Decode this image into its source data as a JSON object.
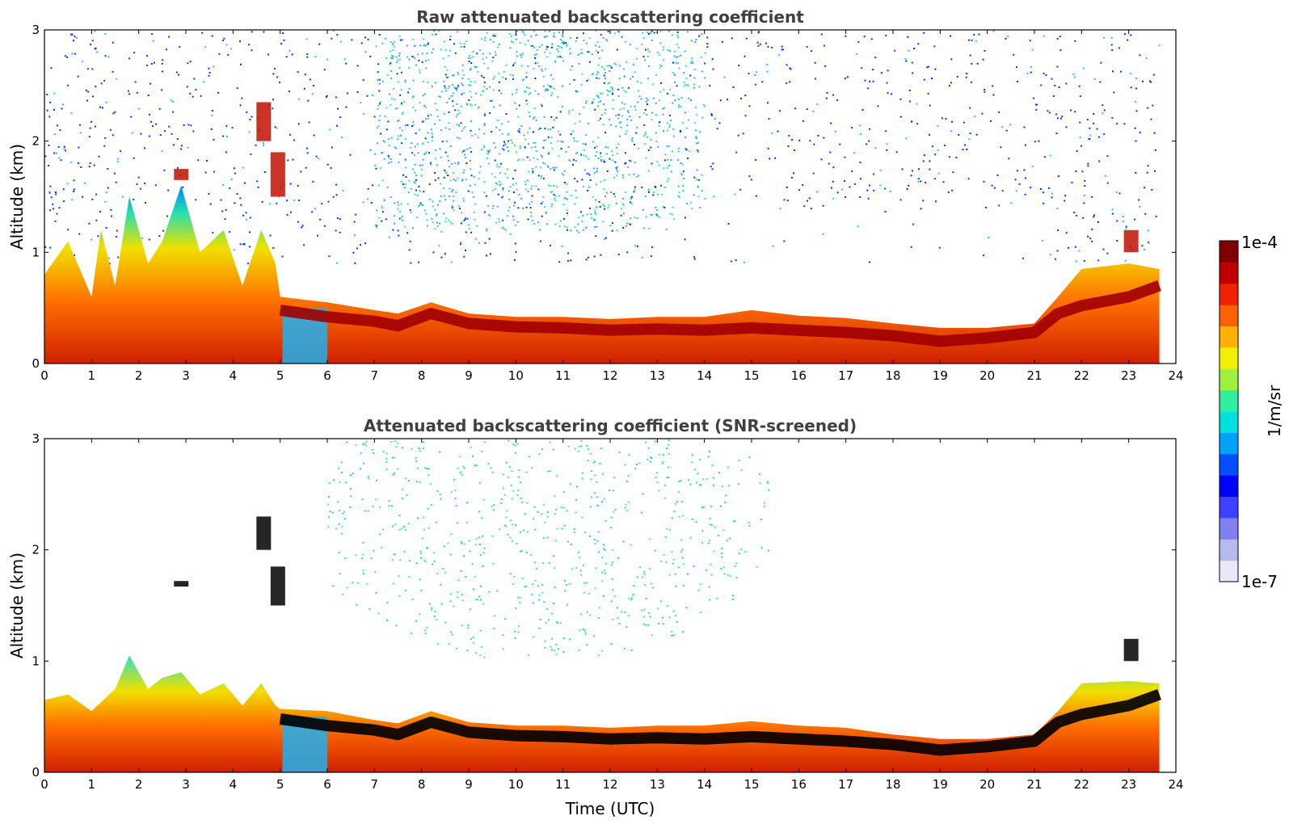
{
  "chart_data": [
    {
      "type": "heatmap",
      "title": "Raw attenuated backscattering coefficient",
      "xlabel": "",
      "ylabel": "Altitude (km)",
      "xlim": [
        0,
        24
      ],
      "ylim": [
        0,
        3
      ],
      "xticks": [
        "0",
        "1",
        "2",
        "3",
        "4",
        "5",
        "6",
        "7",
        "8",
        "9",
        "10",
        "11",
        "12",
        "13",
        "14",
        "15",
        "16",
        "17",
        "18",
        "19",
        "20",
        "21",
        "22",
        "23",
        "24"
      ],
      "yticks": [
        "0",
        "1",
        "2",
        "3"
      ],
      "data_end_hour": 23.65,
      "layer_top_km": [
        [
          0,
          0.8
        ],
        [
          0.5,
          1.1
        ],
        [
          1,
          0.6
        ],
        [
          1.2,
          1.2
        ],
        [
          1.5,
          0.7
        ],
        [
          1.8,
          1.5
        ],
        [
          2.2,
          0.9
        ],
        [
          2.5,
          1.1
        ],
        [
          2.9,
          1.6
        ],
        [
          3.3,
          1.0
        ],
        [
          3.8,
          1.2
        ],
        [
          4.2,
          0.7
        ],
        [
          4.6,
          1.2
        ],
        [
          4.9,
          0.9
        ],
        [
          5.0,
          0.6
        ],
        [
          6,
          0.55
        ],
        [
          7,
          0.48
        ],
        [
          7.5,
          0.45
        ],
        [
          8.2,
          0.55
        ],
        [
          9,
          0.45
        ],
        [
          10,
          0.42
        ],
        [
          11,
          0.42
        ],
        [
          12,
          0.4
        ],
        [
          13,
          0.42
        ],
        [
          14,
          0.42
        ],
        [
          15,
          0.48
        ],
        [
          16,
          0.43
        ],
        [
          17,
          0.41
        ],
        [
          18,
          0.36
        ],
        [
          19,
          0.32
        ],
        [
          20,
          0.32
        ],
        [
          21,
          0.36
        ],
        [
          21.5,
          0.6
        ],
        [
          22,
          0.85
        ],
        [
          23,
          0.9
        ],
        [
          23.65,
          0.85
        ]
      ],
      "cloud_layer_km": [
        [
          5.0,
          0.48
        ],
        [
          6,
          0.42
        ],
        [
          7,
          0.38
        ],
        [
          7.5,
          0.34
        ],
        [
          8.2,
          0.45
        ],
        [
          9,
          0.36
        ],
        [
          10,
          0.33
        ],
        [
          11,
          0.32
        ],
        [
          12,
          0.3
        ],
        [
          13,
          0.31
        ],
        [
          14,
          0.3
        ],
        [
          15,
          0.32
        ],
        [
          16,
          0.3
        ],
        [
          17,
          0.28
        ],
        [
          18,
          0.25
        ],
        [
          19,
          0.2
        ],
        [
          20,
          0.23
        ],
        [
          21,
          0.28
        ],
        [
          21.5,
          0.45
        ],
        [
          22,
          0.52
        ],
        [
          23,
          0.6
        ],
        [
          23.65,
          0.7
        ]
      ],
      "elevated_clouds": [
        {
          "x": 4.6,
          "y0": 2.0,
          "y1": 2.35
        },
        {
          "x": 4.9,
          "y0": 1.5,
          "y1": 1.9
        },
        {
          "x": 2.85,
          "y0": 1.65,
          "y1": 1.75
        },
        {
          "x": 23.0,
          "y0": 1.0,
          "y1": 1.2
        }
      ],
      "noise": "scattered blue and cyan/green noise above boundary layer, denser between 7 and 13 UTC above 1.5 km"
    },
    {
      "type": "heatmap",
      "title": "Attenuated backscattering coefficient (SNR-screened)",
      "xlabel": "Time (UTC)",
      "ylabel": "Altitude (km)",
      "xlim": [
        0,
        24
      ],
      "ylim": [
        0,
        3
      ],
      "xticks": [
        "0",
        "1",
        "2",
        "3",
        "4",
        "5",
        "6",
        "7",
        "8",
        "9",
        "10",
        "11",
        "12",
        "13",
        "14",
        "15",
        "16",
        "17",
        "18",
        "19",
        "20",
        "21",
        "22",
        "23",
        "24"
      ],
      "yticks": [
        "0",
        "1",
        "2",
        "3"
      ],
      "data_end_hour": 23.65,
      "layer_top_km": [
        [
          0,
          0.65
        ],
        [
          0.5,
          0.7
        ],
        [
          1,
          0.55
        ],
        [
          1.5,
          0.75
        ],
        [
          1.8,
          1.05
        ],
        [
          2.2,
          0.75
        ],
        [
          2.5,
          0.85
        ],
        [
          2.9,
          0.9
        ],
        [
          3.3,
          0.7
        ],
        [
          3.8,
          0.8
        ],
        [
          4.2,
          0.6
        ],
        [
          4.6,
          0.8
        ],
        [
          4.9,
          0.6
        ],
        [
          5.0,
          0.57
        ],
        [
          6,
          0.55
        ],
        [
          7,
          0.47
        ],
        [
          7.5,
          0.44
        ],
        [
          8.2,
          0.55
        ],
        [
          9,
          0.45
        ],
        [
          10,
          0.42
        ],
        [
          11,
          0.42
        ],
        [
          12,
          0.4
        ],
        [
          13,
          0.42
        ],
        [
          14,
          0.42
        ],
        [
          15,
          0.46
        ],
        [
          16,
          0.42
        ],
        [
          17,
          0.4
        ],
        [
          18,
          0.34
        ],
        [
          19,
          0.3
        ],
        [
          20,
          0.3
        ],
        [
          21,
          0.34
        ],
        [
          21.5,
          0.55
        ],
        [
          22,
          0.8
        ],
        [
          23,
          0.82
        ],
        [
          23.65,
          0.8
        ]
      ],
      "cloud_layer_km": [
        [
          5.0,
          0.48
        ],
        [
          6,
          0.42
        ],
        [
          7,
          0.38
        ],
        [
          7.5,
          0.34
        ],
        [
          8.2,
          0.45
        ],
        [
          9,
          0.36
        ],
        [
          10,
          0.33
        ],
        [
          11,
          0.32
        ],
        [
          12,
          0.3
        ],
        [
          13,
          0.31
        ],
        [
          14,
          0.3
        ],
        [
          15,
          0.32
        ],
        [
          16,
          0.3
        ],
        [
          17,
          0.28
        ],
        [
          18,
          0.25
        ],
        [
          19,
          0.2
        ],
        [
          20,
          0.23
        ],
        [
          21,
          0.28
        ],
        [
          21.5,
          0.45
        ],
        [
          22,
          0.52
        ],
        [
          23,
          0.6
        ],
        [
          23.65,
          0.7
        ]
      ],
      "elevated_clouds": [
        {
          "x": 4.6,
          "y0": 2.0,
          "y1": 2.3
        },
        {
          "x": 4.9,
          "y0": 1.5,
          "y1": 1.85
        },
        {
          "x": 2.85,
          "y0": 1.67,
          "y1": 1.72
        },
        {
          "x": 23.0,
          "y0": 1.0,
          "y1": 1.2
        }
      ],
      "noise": "sparse cyan/green points between 6 and 16 UTC above 1 km"
    }
  ],
  "colorbar": {
    "top_label": "1e-4",
    "bottom_label": "1e-7",
    "unit": "1/m/sr",
    "range": [
      1e-07,
      0.0001
    ],
    "scale": "log",
    "colors": [
      "#e8e8f8",
      "#b8b8f0",
      "#8080f0",
      "#4040ff",
      "#0000ff",
      "#0050ff",
      "#00a0ff",
      "#00e0e0",
      "#30f0a0",
      "#a0f040",
      "#f0f000",
      "#ffb000",
      "#ff6000",
      "#f02000",
      "#c00000",
      "#800000"
    ]
  }
}
